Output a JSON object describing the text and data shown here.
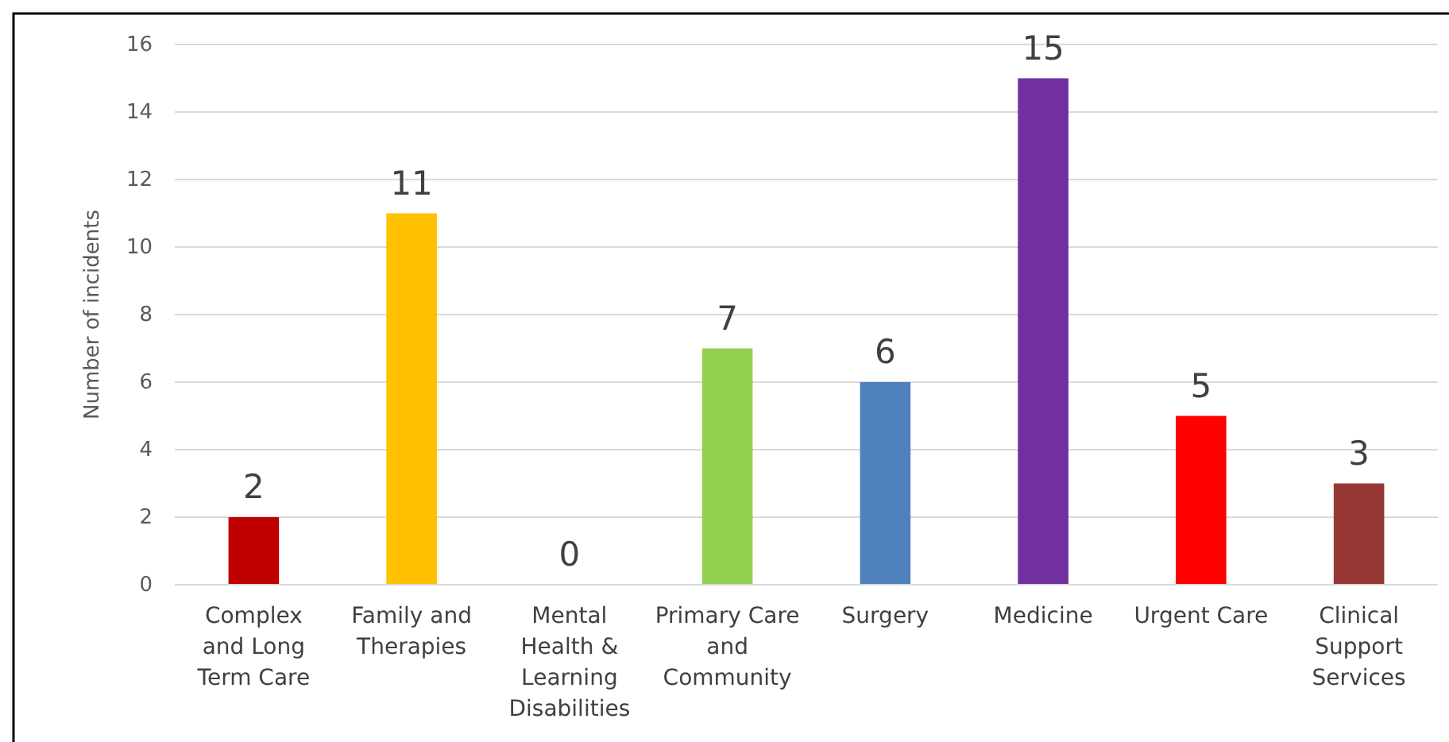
{
  "chart_data": {
    "type": "bar",
    "ylabel": "Number of incidents",
    "categories": [
      "Complex and Long Term Care",
      "Family and Therapies",
      "Mental Health & Learning Disabilities",
      "Primary Care and Community",
      "Surgery",
      "Medicine",
      "Urgent Care",
      "Clinical Support Services"
    ],
    "values": [
      2,
      11,
      0,
      7,
      6,
      15,
      5,
      3
    ],
    "colors": [
      "#c00000",
      "#ffc000",
      "#7f7f7f",
      "#92d050",
      "#4f81bd",
      "#7030a0",
      "#ff0000",
      "#953735"
    ],
    "ylim": [
      0,
      16
    ],
    "yticks": [
      0,
      2,
      4,
      6,
      8,
      10,
      12,
      14,
      16
    ],
    "grid": "y",
    "data_labels": true
  }
}
